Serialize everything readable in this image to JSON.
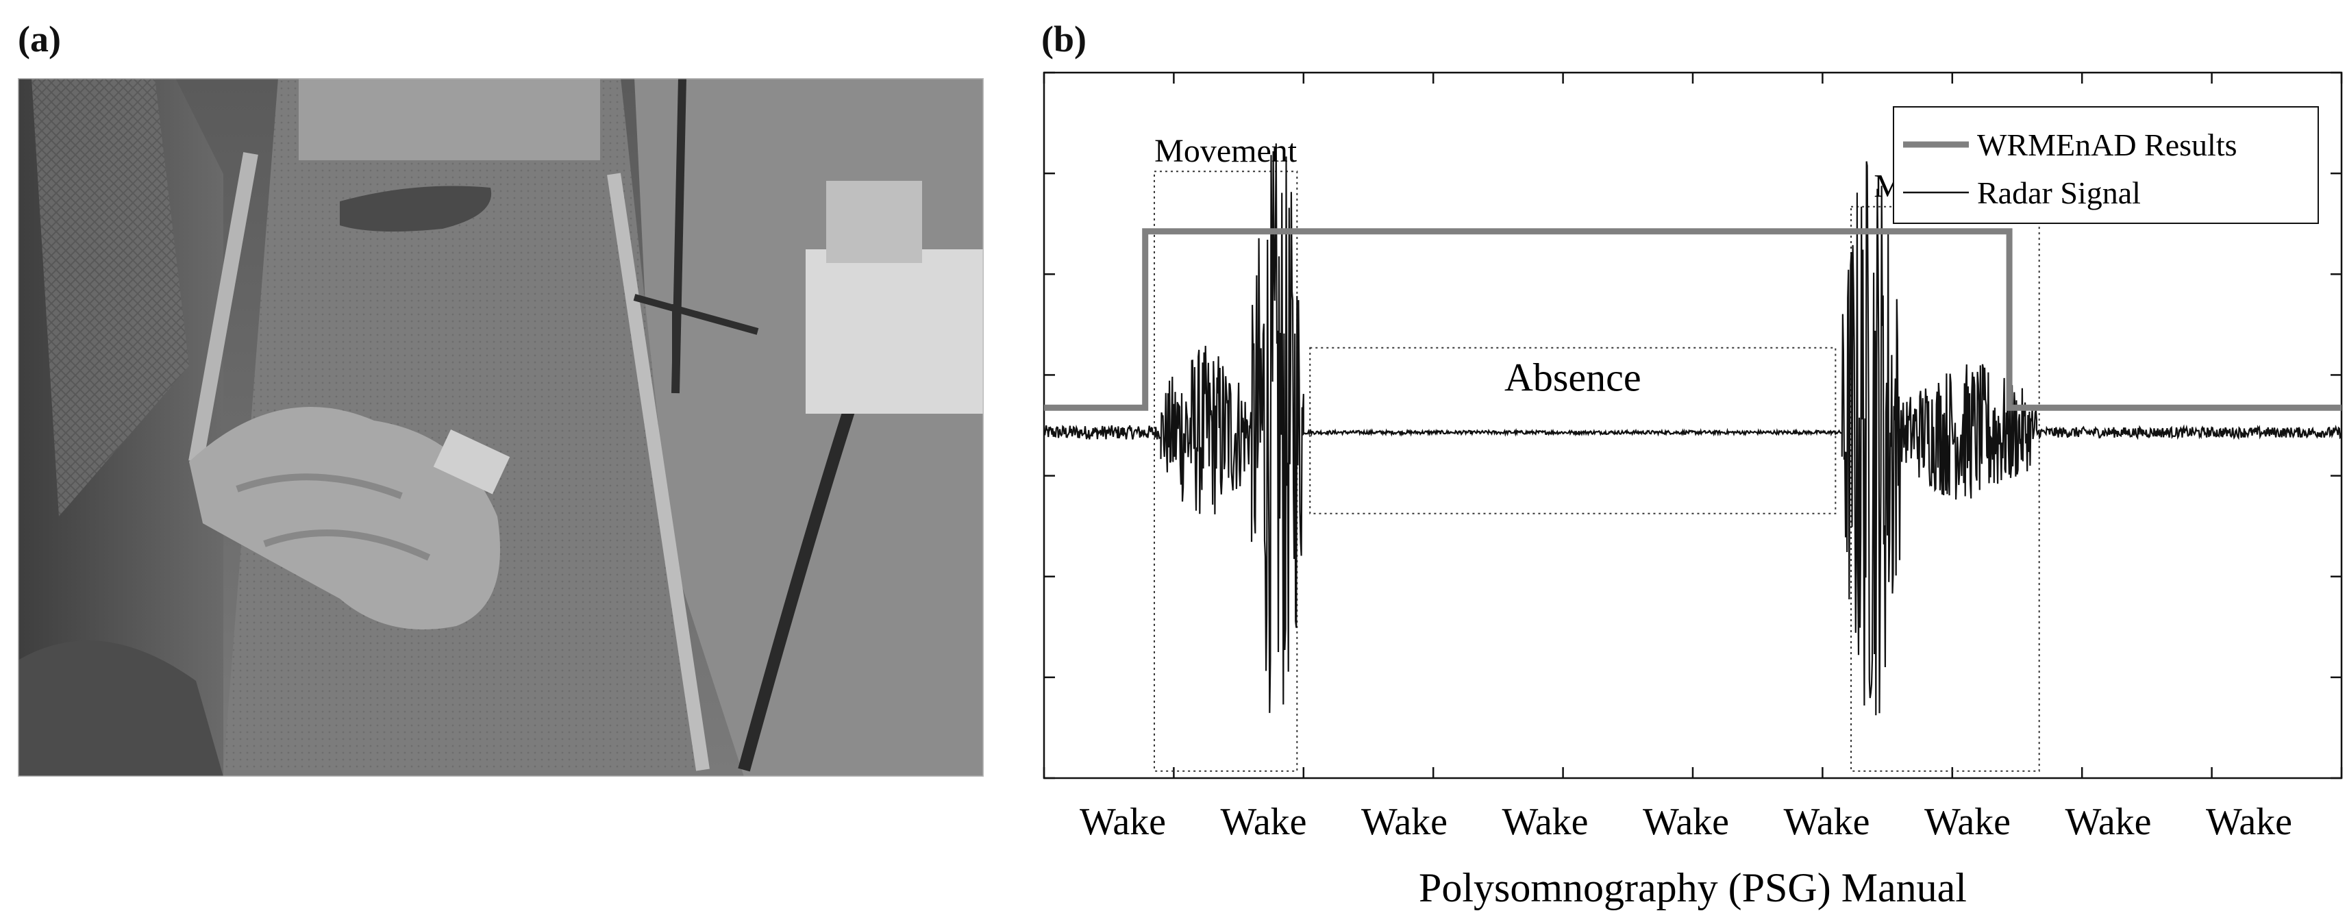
{
  "panels": {
    "a_label": "(a)",
    "b_label": "(b)"
  },
  "photo": {
    "icon": "bedroom-camera-photo"
  },
  "chart_data": {
    "type": "line",
    "xlabel": "Polysomnography (PSG) Manual",
    "x_tick_labels": [
      "Wake",
      "Wake",
      "Wake",
      "Wake",
      "Wake",
      "Wake",
      "Wake",
      "Wake",
      "Wake"
    ],
    "legend": {
      "placement": "top-right",
      "entries": [
        "WRMEnAD Results",
        "Radar Signal"
      ]
    },
    "annotations": [
      {
        "text": "Movement",
        "x_range": [
          0.085,
          0.195
        ]
      },
      {
        "text": "Absence",
        "x_range": [
          0.205,
          0.61
        ]
      },
      {
        "text": "Movement",
        "x_range": [
          0.622,
          0.767
        ]
      }
    ],
    "xlim": [
      0,
      1
    ],
    "ylim": [
      -1,
      1
    ],
    "series": [
      {
        "name": "WRMEnAD Results",
        "color": "#808080",
        "x": [
          0.0,
          0.078,
          0.078,
          0.744,
          0.744,
          1.0
        ],
        "y": [
          0.05,
          0.05,
          0.55,
          0.55,
          0.05,
          0.05
        ]
      },
      {
        "name": "Radar Signal",
        "color": "#111111",
        "segments": [
          {
            "x_range": [
              0.0,
              0.09
            ],
            "amplitude": 0.02
          },
          {
            "x_range": [
              0.09,
              0.16
            ],
            "amplitude": 0.25
          },
          {
            "x_range": [
              0.16,
              0.2
            ],
            "amplitude": 0.85
          },
          {
            "x_range": [
              0.2,
              0.615
            ],
            "amplitude": 0.005
          },
          {
            "x_range": [
              0.615,
              0.66
            ],
            "amplitude": 0.85
          },
          {
            "x_range": [
              0.66,
              0.765
            ],
            "amplitude": 0.2
          },
          {
            "x_range": [
              0.765,
              1.0
            ],
            "amplitude": 0.015
          }
        ]
      }
    ]
  }
}
